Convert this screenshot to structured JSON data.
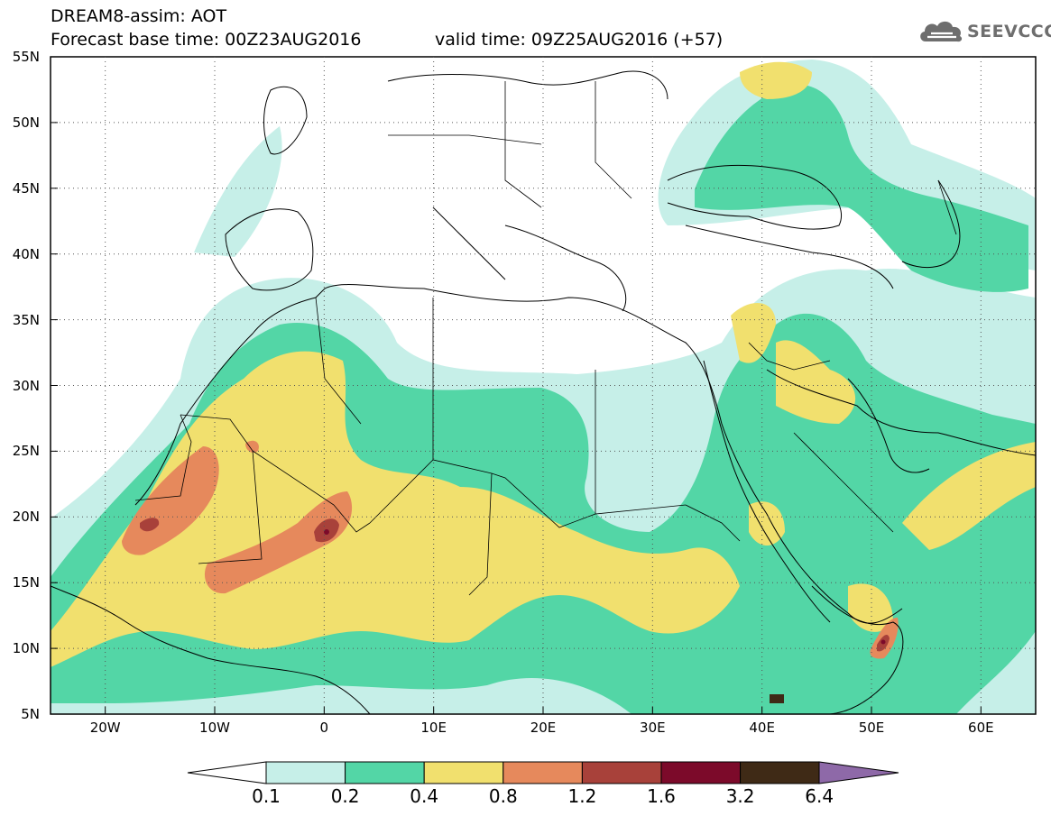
{
  "header": {
    "line1": "DREAM8-assim: AOT",
    "line2": "Forecast base time: 00Z23AUG2016",
    "valid": "valid time: 09Z25AUG2016 (+57)"
  },
  "logo": {
    "text": "SEEVCCC",
    "icon": "cloud-icon"
  },
  "map": {
    "lat_labels": [
      "55N",
      "50N",
      "45N",
      "40N",
      "35N",
      "30N",
      "25N",
      "20N",
      "15N",
      "10N",
      "5N"
    ],
    "lon_labels": [
      "20W",
      "10W",
      "0",
      "10E",
      "20E",
      "30E",
      "40E",
      "50E",
      "60E"
    ],
    "lat_range": [
      5,
      55
    ],
    "lon_range": [
      -25,
      65
    ]
  },
  "legend": {
    "levels": [
      "0.1",
      "0.2",
      "0.4",
      "0.8",
      "1.2",
      "1.6",
      "3.2",
      "6.4"
    ],
    "colors": {
      "c01": "#c6efe8",
      "c02": "#53d6a6",
      "c04": "#f1e06e",
      "c08": "#e6895c",
      "c12": "#a8413a",
      "c16": "#7c0a2a",
      "c32": "#3f2a16",
      "c64": "#8e69a8"
    }
  }
}
